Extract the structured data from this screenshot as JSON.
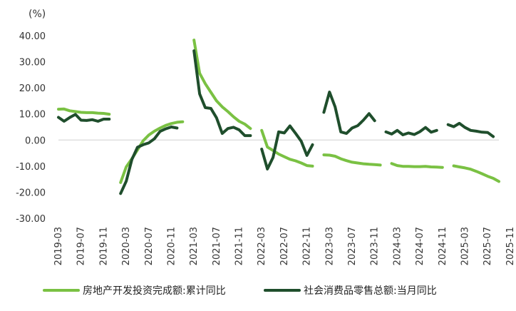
{
  "chart_data": {
    "type": "line",
    "unit_label": "(%)",
    "ylim": [
      -30,
      40
    ],
    "y_ticks": [
      40,
      30,
      20,
      10,
      0,
      -10,
      -20,
      -30
    ],
    "y_tick_labels": [
      "40.00",
      "30.00",
      "20.00",
      "10.00",
      "0.00",
      "-10.00",
      "-20.00",
      "-30.00"
    ],
    "x_tick_labels": [
      "2019-03",
      "2019-07",
      "2019-11",
      "2020-03",
      "2020-07",
      "2020-11",
      "2021-03",
      "2021-07",
      "2021-11",
      "2022-03",
      "2022-07",
      "2022-11",
      "2023-03",
      "2023-07",
      "2023-11",
      "2024-03",
      "2024-07",
      "2024-11",
      "2025-03",
      "2025-07",
      "2025-11"
    ],
    "x_start": "2019-03",
    "x_end": "2025-11",
    "grid": false,
    "legend_position": "bottom",
    "series": [
      {
        "name": "房地产开发投资完成额:累计同比",
        "color": "#7AC143",
        "values": [
          11.8,
          11.9,
          11.2,
          10.9,
          10.6,
          10.5,
          10.5,
          10.3,
          10.2,
          9.9,
          null,
          -16.3,
          -10.3,
          -7.2,
          -3.8,
          -0.3,
          1.9,
          3.4,
          4.6,
          5.6,
          6.3,
          6.8,
          7.0,
          null,
          38.3,
          25.6,
          21.6,
          18.3,
          15.0,
          12.7,
          10.9,
          8.9,
          7.2,
          6.1,
          4.4,
          null,
          3.7,
          -2.7,
          -4.0,
          -5.4,
          -6.4,
          -7.4,
          -8.0,
          -8.8,
          -9.8,
          -10.0,
          null,
          -5.7,
          -5.8,
          -6.2,
          -7.2,
          -7.9,
          -8.5,
          -8.8,
          -9.1,
          -9.3,
          -9.4,
          -9.6,
          null,
          -9.0,
          -9.8,
          -10.1,
          -10.1,
          -10.2,
          -10.2,
          -10.1,
          -10.3,
          -10.4,
          -10.5,
          null,
          -9.9,
          -10.3,
          -10.7,
          -11.2,
          -12.0,
          -12.9,
          -13.9,
          -14.7,
          -15.9
        ]
      },
      {
        "name": "社会消费品零售总额:当月同比",
        "color": "#1F4E2C",
        "values": [
          8.7,
          7.2,
          8.6,
          9.8,
          7.6,
          7.5,
          7.8,
          7.2,
          8.0,
          8.0,
          null,
          -20.5,
          -15.8,
          -7.5,
          -2.8,
          -1.8,
          -1.1,
          0.5,
          3.3,
          4.3,
          5.0,
          4.6,
          null,
          null,
          34.2,
          17.7,
          12.4,
          12.1,
          8.5,
          2.5,
          4.4,
          4.9,
          3.9,
          1.7,
          1.7,
          null,
          -3.5,
          -11.1,
          -6.7,
          3.1,
          2.7,
          5.4,
          2.5,
          -0.5,
          -5.9,
          -1.8,
          null,
          10.6,
          18.4,
          12.7,
          3.1,
          2.5,
          4.6,
          5.5,
          7.6,
          10.1,
          7.4,
          null,
          3.1,
          2.3,
          3.7,
          2.0,
          2.7,
          2.1,
          3.2,
          4.8,
          3.0,
          3.7,
          null,
          5.9,
          5.1,
          6.4,
          4.8,
          3.7,
          3.4,
          3.0,
          2.9,
          1.3
        ]
      }
    ]
  }
}
